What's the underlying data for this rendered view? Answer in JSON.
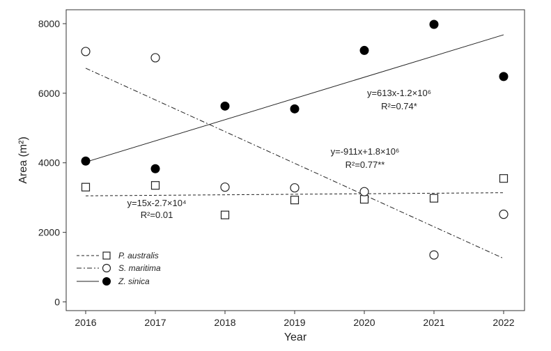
{
  "chart_data": {
    "type": "scatter",
    "title": "",
    "xlabel": "Year",
    "ylabel": "Area (m²)",
    "x": [
      2016,
      2017,
      2018,
      2019,
      2020,
      2021,
      2022
    ],
    "xlim": [
      2015.72,
      2022.3
    ],
    "ylim": [
      -250,
      8400
    ],
    "xticks": [
      "2016",
      "2017",
      "2018",
      "2019",
      "2020",
      "2021",
      "2022"
    ],
    "yticks": [
      "0",
      "2000",
      "4000",
      "6000",
      "8000"
    ],
    "grid": false,
    "legend_position": "bottom-left",
    "series": [
      {
        "name": "P. australis",
        "marker": "open-square",
        "line_style": "dashed",
        "values": [
          3300,
          3350,
          2500,
          2930,
          2950,
          2980,
          3550
        ],
        "fit": {
          "x": [
            2016,
            2022
          ],
          "y": [
            3050,
            3140
          ]
        },
        "equation": "y=15x-2.7×10⁴",
        "r2": "R²=0.01"
      },
      {
        "name": "S. maritima",
        "marker": "open-circle",
        "line_style": "dash-dot",
        "values": [
          7200,
          7020,
          3300,
          3280,
          3170,
          1350,
          2520
        ],
        "fit": {
          "x": [
            2016,
            2022
          ],
          "y": [
            6720,
            1250
          ]
        },
        "equation": "y=-911x+1.8×10⁶",
        "r2": "R²=0.77**"
      },
      {
        "name": "Z. sinica",
        "marker": "filled-circle",
        "line_style": "solid",
        "values": [
          4050,
          3830,
          5630,
          5550,
          7230,
          7980,
          6480
        ],
        "fit": {
          "x": [
            2016,
            2022
          ],
          "y": [
            4020,
            7680
          ]
        },
        "equation": "y=613x-1.2×10⁶",
        "r2": "R²=0.74*"
      }
    ]
  }
}
